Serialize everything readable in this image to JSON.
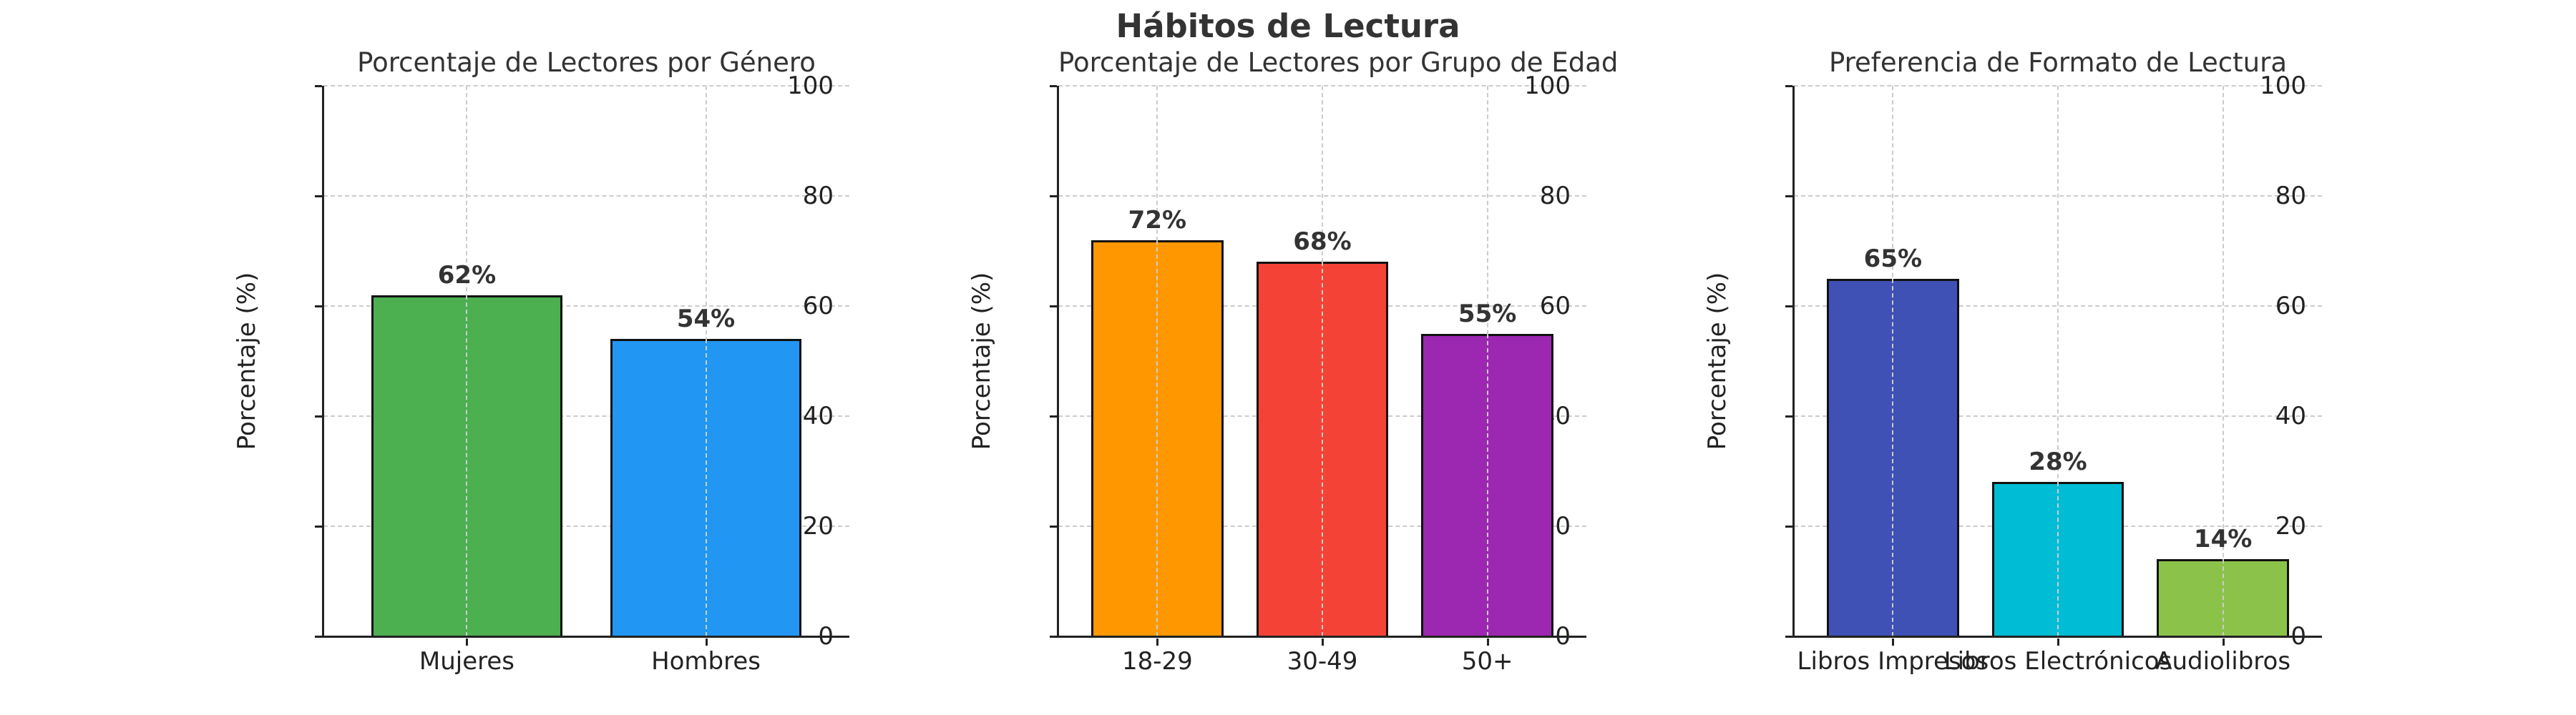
{
  "title": "Hábitos de Lectura",
  "chart_data": [
    {
      "type": "bar",
      "title": "Porcentaje de Lectores por Género",
      "xlabel": "",
      "ylabel": "Porcentaje (%)",
      "ylim": [
        0,
        100
      ],
      "yticks": [
        0,
        20,
        40,
        60,
        80,
        100
      ],
      "grid": true,
      "categories": [
        "Mujeres",
        "Hombres"
      ],
      "values": [
        62,
        54
      ],
      "value_labels": [
        "62%",
        "54%"
      ],
      "colors": [
        "#4CAF50",
        "#2196F3"
      ]
    },
    {
      "type": "bar",
      "title": "Porcentaje de Lectores por Grupo de Edad",
      "xlabel": "",
      "ylabel": "Porcentaje (%)",
      "ylim": [
        0,
        100
      ],
      "yticks": [
        0,
        20,
        40,
        60,
        80,
        100
      ],
      "grid": true,
      "categories": [
        "18-29",
        "30-49",
        "50+"
      ],
      "values": [
        72,
        68,
        55
      ],
      "value_labels": [
        "72%",
        "68%",
        "55%"
      ],
      "colors": [
        "#FF9800",
        "#F44336",
        "#9C27B0"
      ]
    },
    {
      "type": "bar",
      "title": "Preferencia de Formato de Lectura",
      "xlabel": "",
      "ylabel": "Porcentaje (%)",
      "ylim": [
        0,
        100
      ],
      "yticks": [
        0,
        20,
        40,
        60,
        80,
        100
      ],
      "grid": true,
      "categories": [
        "Libros Impresos",
        "Libros Electrónicos",
        "Audiolibros"
      ],
      "values": [
        65,
        28,
        14
      ],
      "value_labels": [
        "65%",
        "28%",
        "14%"
      ],
      "colors": [
        "#3F51B5",
        "#00BCD4",
        "#8BC34A"
      ]
    }
  ]
}
